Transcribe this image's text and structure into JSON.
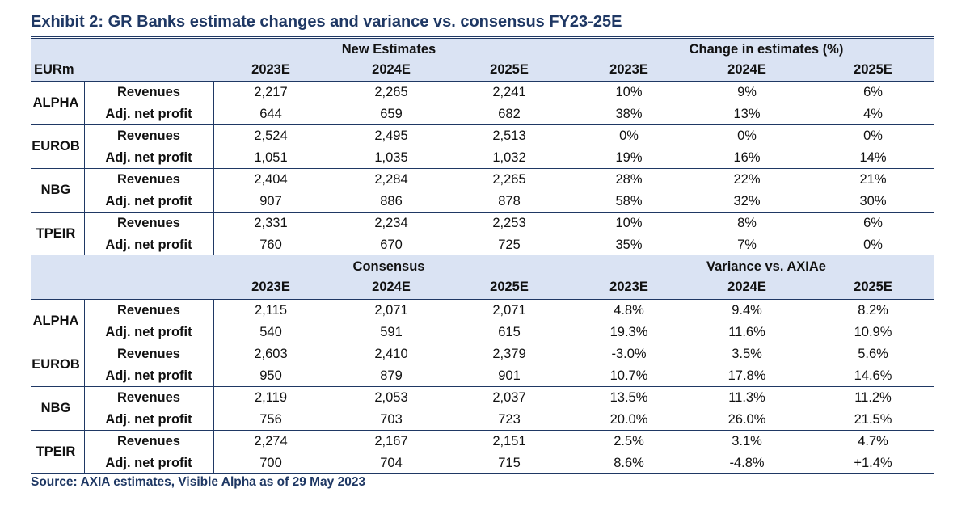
{
  "title": "Exhibit 2: GR Banks estimate changes and variance vs. consensus FY23-25E",
  "unit_label": "EURm",
  "metric_labels": [
    "Revenues",
    "Adj. net profit"
  ],
  "years": [
    "2023E",
    "2024E",
    "2025E",
    "2023E",
    "2024E",
    "2025E"
  ],
  "sections": [
    {
      "group_left": "New Estimates",
      "group_right": "Change in estimates (%)",
      "banks": [
        {
          "name": "ALPHA",
          "rows": [
            [
              "2,217",
              "2,265",
              "2,241",
              "10%",
              "9%",
              "6%"
            ],
            [
              "644",
              "659",
              "682",
              "38%",
              "13%",
              "4%"
            ]
          ]
        },
        {
          "name": "EUROB",
          "rows": [
            [
              "2,524",
              "2,495",
              "2,513",
              "0%",
              "0%",
              "0%"
            ],
            [
              "1,051",
              "1,035",
              "1,032",
              "19%",
              "16%",
              "14%"
            ]
          ]
        },
        {
          "name": "NBG",
          "rows": [
            [
              "2,404",
              "2,284",
              "2,265",
              "28%",
              "22%",
              "21%"
            ],
            [
              "907",
              "886",
              "878",
              "58%",
              "32%",
              "30%"
            ]
          ]
        },
        {
          "name": "TPEIR",
          "rows": [
            [
              "2,331",
              "2,234",
              "2,253",
              "10%",
              "8%",
              "6%"
            ],
            [
              "760",
              "670",
              "725",
              "35%",
              "7%",
              "0%"
            ]
          ]
        }
      ]
    },
    {
      "group_left": "Consensus",
      "group_right": "Variance vs. AXIAe",
      "banks": [
        {
          "name": "ALPHA",
          "rows": [
            [
              "2,115",
              "2,071",
              "2,071",
              "4.8%",
              "9.4%",
              "8.2%"
            ],
            [
              "540",
              "591",
              "615",
              "19.3%",
              "11.6%",
              "10.9%"
            ]
          ]
        },
        {
          "name": "EUROB",
          "rows": [
            [
              "2,603",
              "2,410",
              "2,379",
              "-3.0%",
              "3.5%",
              "5.6%"
            ],
            [
              "950",
              "879",
              "901",
              "10.7%",
              "17.8%",
              "14.6%"
            ]
          ]
        },
        {
          "name": "NBG",
          "rows": [
            [
              "2,119",
              "2,053",
              "2,037",
              "13.5%",
              "11.3%",
              "11.2%"
            ],
            [
              "756",
              "703",
              "723",
              "20.0%",
              "26.0%",
              "21.5%"
            ]
          ]
        },
        {
          "name": "TPEIR",
          "rows": [
            [
              "2,274",
              "2,167",
              "2,151",
              "2.5%",
              "3.1%",
              "4.7%"
            ],
            [
              "700",
              "704",
              "715",
              "8.6%",
              "-4.8%",
              "+1.4%"
            ]
          ]
        }
      ]
    }
  ],
  "source": "Source: AXIA estimates, Visible Alpha as of 29 May 2023"
}
